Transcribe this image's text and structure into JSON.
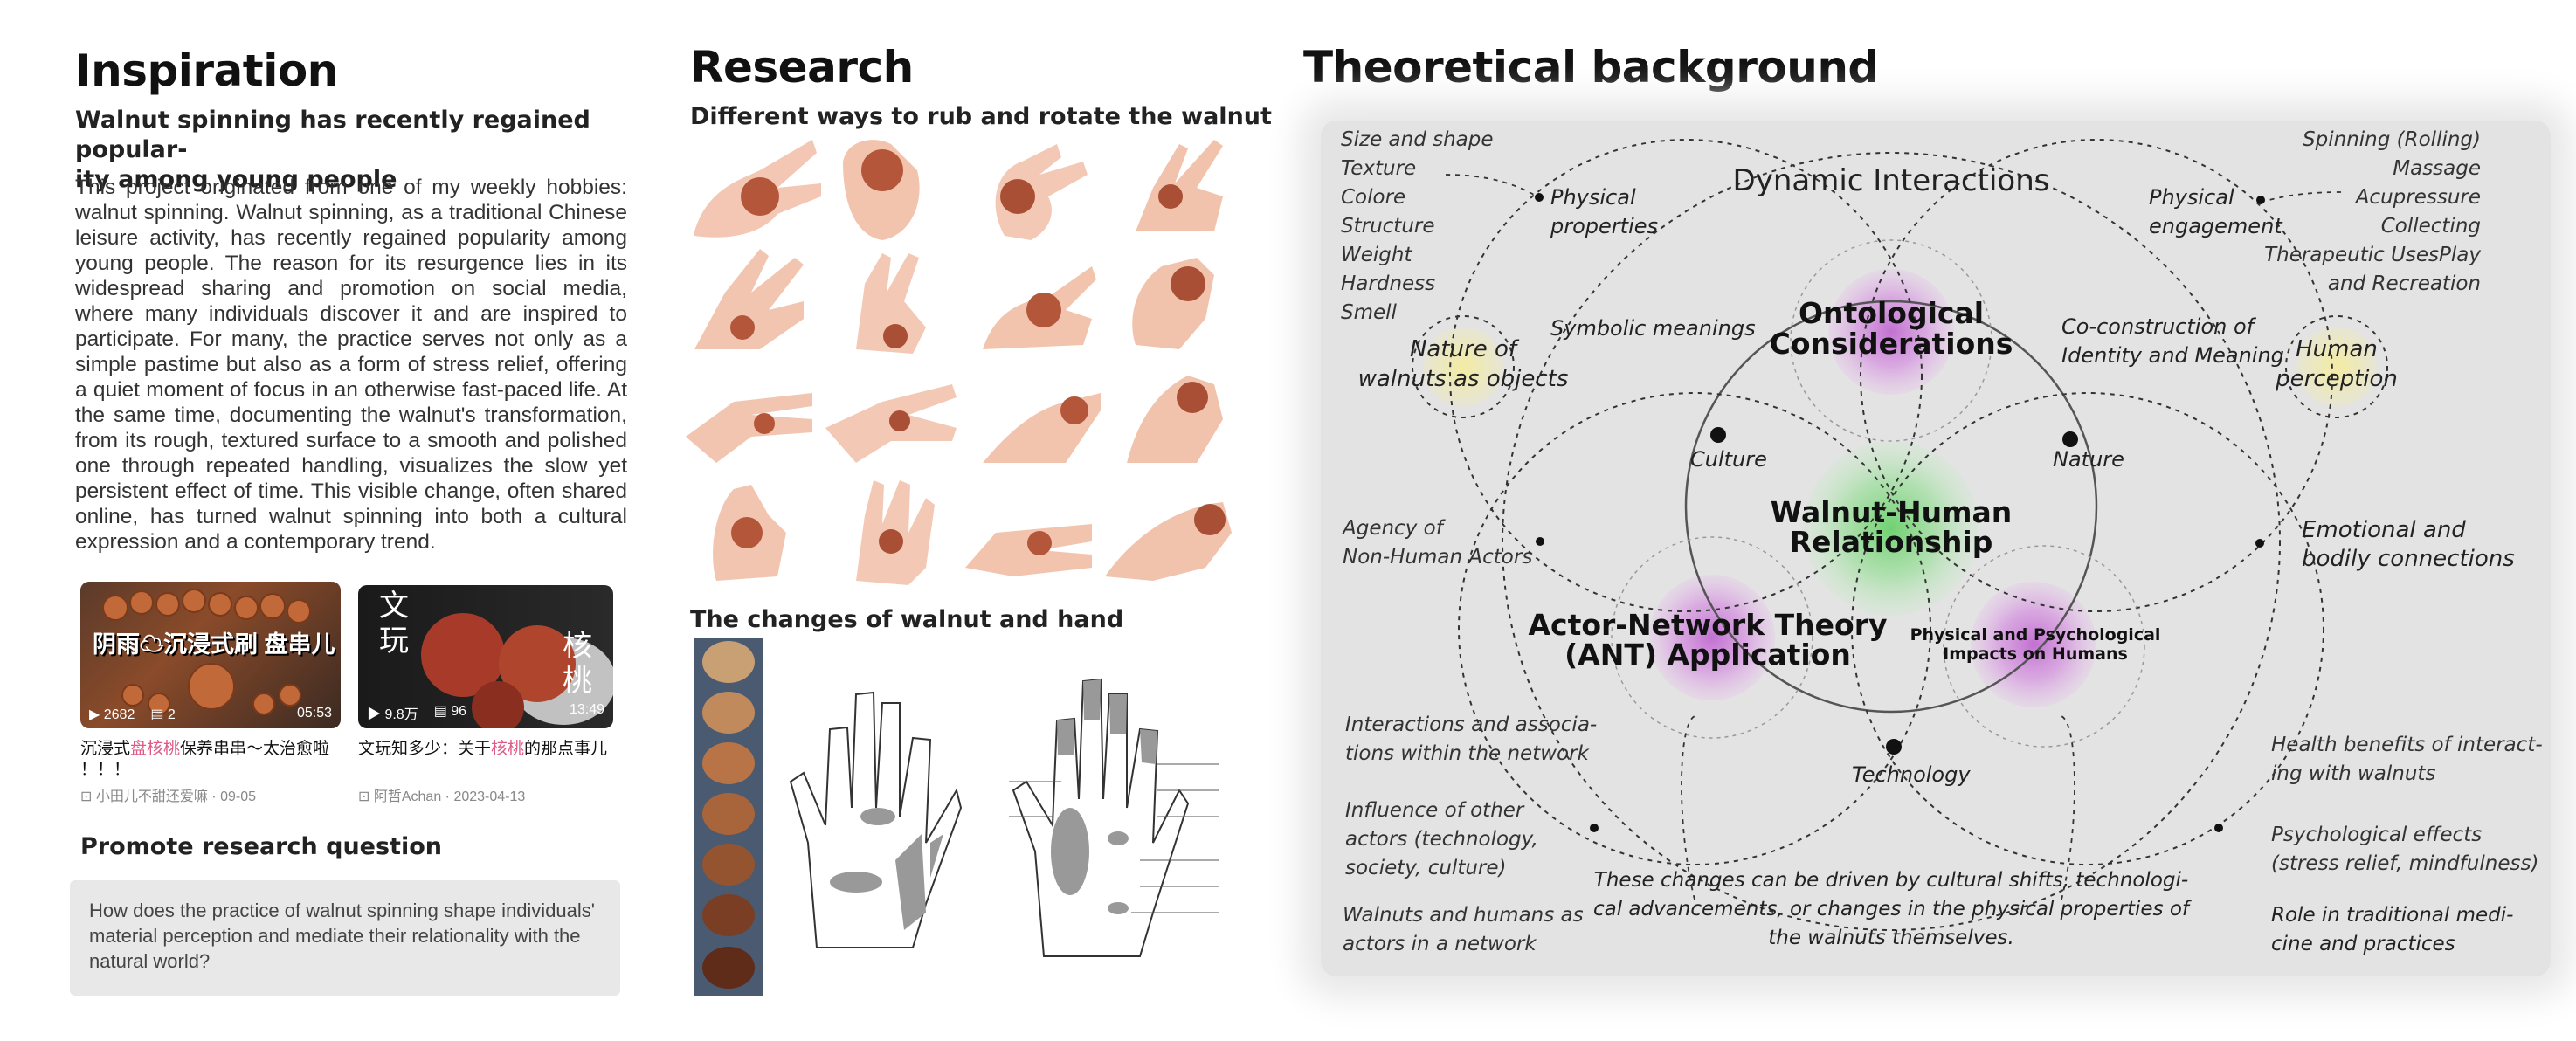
{
  "inspiration": {
    "title": "Inspiration",
    "subtitle_line1": "Walnut spinning has recently regained popular-",
    "subtitle_line2": "ity among young people",
    "body": "This project originated from one of my weekly hobbies: walnut spinning. Walnut spinning, as a traditional Chinese leisure activity, has recently regained popularity among young people. The reason for its resurgence lies in its widespread sharing and promotion on social media, where many individuals discover it and are inspired to participate. For many, the practice serves not only as a simple pastime but also as a form of stress relief, offering a quiet moment of focus in an otherwise fast-paced life. At the same time, documenting the walnut's transformation, from its rough, textured surface to a smooth and polished one through repeated handling, visualizes the slow yet persistent effect of time. This visible change, often shared online, has turned walnut spinning into both a cultural expression and a contemporary trend.",
    "cards": [
      {
        "overlay": "阴雨☁沉浸式刷 盘串儿",
        "plays": "2682",
        "comments": "2",
        "duration": "05:53",
        "caption_pre": "沉浸式",
        "caption_hl": "盘核桃",
        "caption_post": "保养串串～太治愈啦",
        "caption_line2": "！！！",
        "meta": "小田儿不甜还爱嘛 · 09-05"
      },
      {
        "overlay_left_1": "文",
        "overlay_left_2": "玩",
        "overlay_right_1": "核",
        "overlay_right_2": "桃",
        "plays": "9.8万",
        "comments": "96",
        "duration": "13:49",
        "caption_pre": "文玩知多少：关于",
        "caption_hl": "核桃",
        "caption_post": "的那点事儿",
        "meta": "阿哲Achan · 2023-04-13"
      }
    ],
    "promote_title": "Promote research question",
    "question": "How does the practice of walnut spinning shape individuals' material perception and mediate their relationality with the natural world?"
  },
  "research": {
    "title": "Research",
    "subtitle": "Different ways to rub and rotate the walnut",
    "changes_title": "The changes of walnut and hand"
  },
  "theory": {
    "title": "Theoretical background",
    "dynamic": "Dynamic Interactions",
    "ontological_1": "Ontological",
    "ontological_2": "Considerations",
    "walnut_human_1": "Walnut-Human",
    "walnut_human_2": "Relationship",
    "ant_1": "Actor-Network Theory",
    "ant_2": "(ANT) Application",
    "physpsych_1": "Physical and Psychological",
    "physpsych_2": "Impacts on Humans",
    "nature_objects_1": "Nature of",
    "nature_objects_2": "walnuts as objects",
    "human_perception_1": "Human",
    "human_perception_2": "perception",
    "physical_props_1": "Physical",
    "physical_props_2": "properties",
    "physical_eng_1": "Physical",
    "physical_eng_2": "engagement",
    "symbolic": "Symbolic meanings",
    "coconstruction_1": "Co-construction of",
    "coconstruction_2": "Identity and Meaning",
    "culture": "Culture",
    "nature": "Nature",
    "technology": "Technology",
    "left_list": [
      "Size and shape",
      "Texture",
      "Colore",
      "Structure",
      "Weight",
      "Hardness",
      "Smell"
    ],
    "right_list": [
      "Spinning (Rolling)",
      "Massage",
      "Acupressure",
      "Collecting",
      "Therapeutic UsesPlay",
      "and Recreation"
    ],
    "agency_1": "Agency of",
    "agency_2": "Non-Human Actors",
    "emotional_1": "Emotional and",
    "emotional_2": "bodily connections",
    "interactions_1": "Interactions and associa-",
    "interactions_2": "tions within the network",
    "influence_1": "Influence of other",
    "influence_2": "actors (technology,",
    "influence_3": "society, culture)",
    "walnuts_actors_1": "Walnuts and humans as",
    "walnuts_actors_2": "actors in a network",
    "health_1": "Health benefits of interact-",
    "health_2": "ing with walnuts",
    "psych_effects_1": "Psychological effects",
    "psych_effects_2": "(stress relief, mindfulness)",
    "role_1": "Role in traditional medi-",
    "role_2": "cine and practices",
    "changes_1": "These changes can be driven by cultural shifts, technologi-",
    "changes_2": "cal advancements, or changes in the physical properties of",
    "changes_3": "the walnuts themselves."
  }
}
